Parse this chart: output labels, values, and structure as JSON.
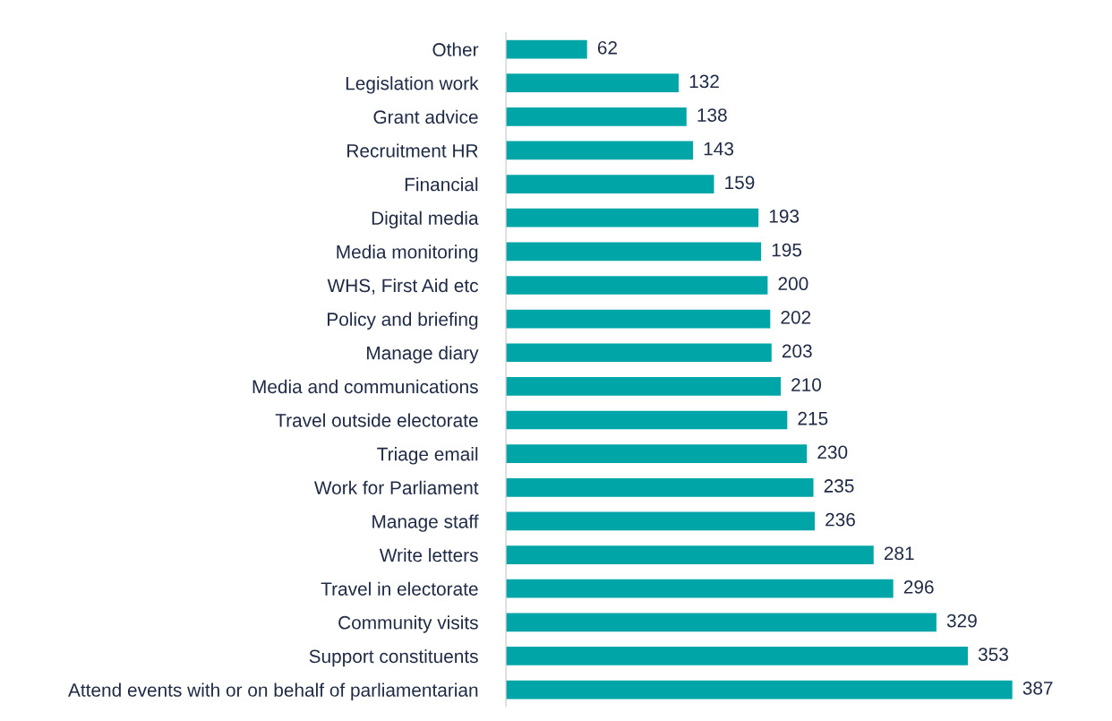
{
  "chart_data": {
    "type": "bar",
    "orientation": "horizontal",
    "data_labels": true,
    "grid": false,
    "legend": false,
    "tick_labels": "y",
    "categories": [
      "Other",
      "Legislation work",
      "Grant advice",
      "Recruitment HR",
      "Financial",
      "Digital media",
      "Media monitoring",
      "WHS, First Aid etc",
      "Policy and briefing",
      "Manage diary",
      "Media and communications",
      "Travel outside electorate",
      "Triage email",
      "Work for Parliament",
      "Manage staff",
      "Write letters",
      "Travel in electorate",
      "Community visits",
      "Support constituents",
      "Attend events with or on behalf of parliamentarian"
    ],
    "values": [
      62,
      132,
      138,
      143,
      159,
      193,
      195,
      200,
      202,
      203,
      210,
      215,
      230,
      235,
      236,
      281,
      296,
      329,
      353,
      387
    ],
    "color": "#00a5a8"
  }
}
